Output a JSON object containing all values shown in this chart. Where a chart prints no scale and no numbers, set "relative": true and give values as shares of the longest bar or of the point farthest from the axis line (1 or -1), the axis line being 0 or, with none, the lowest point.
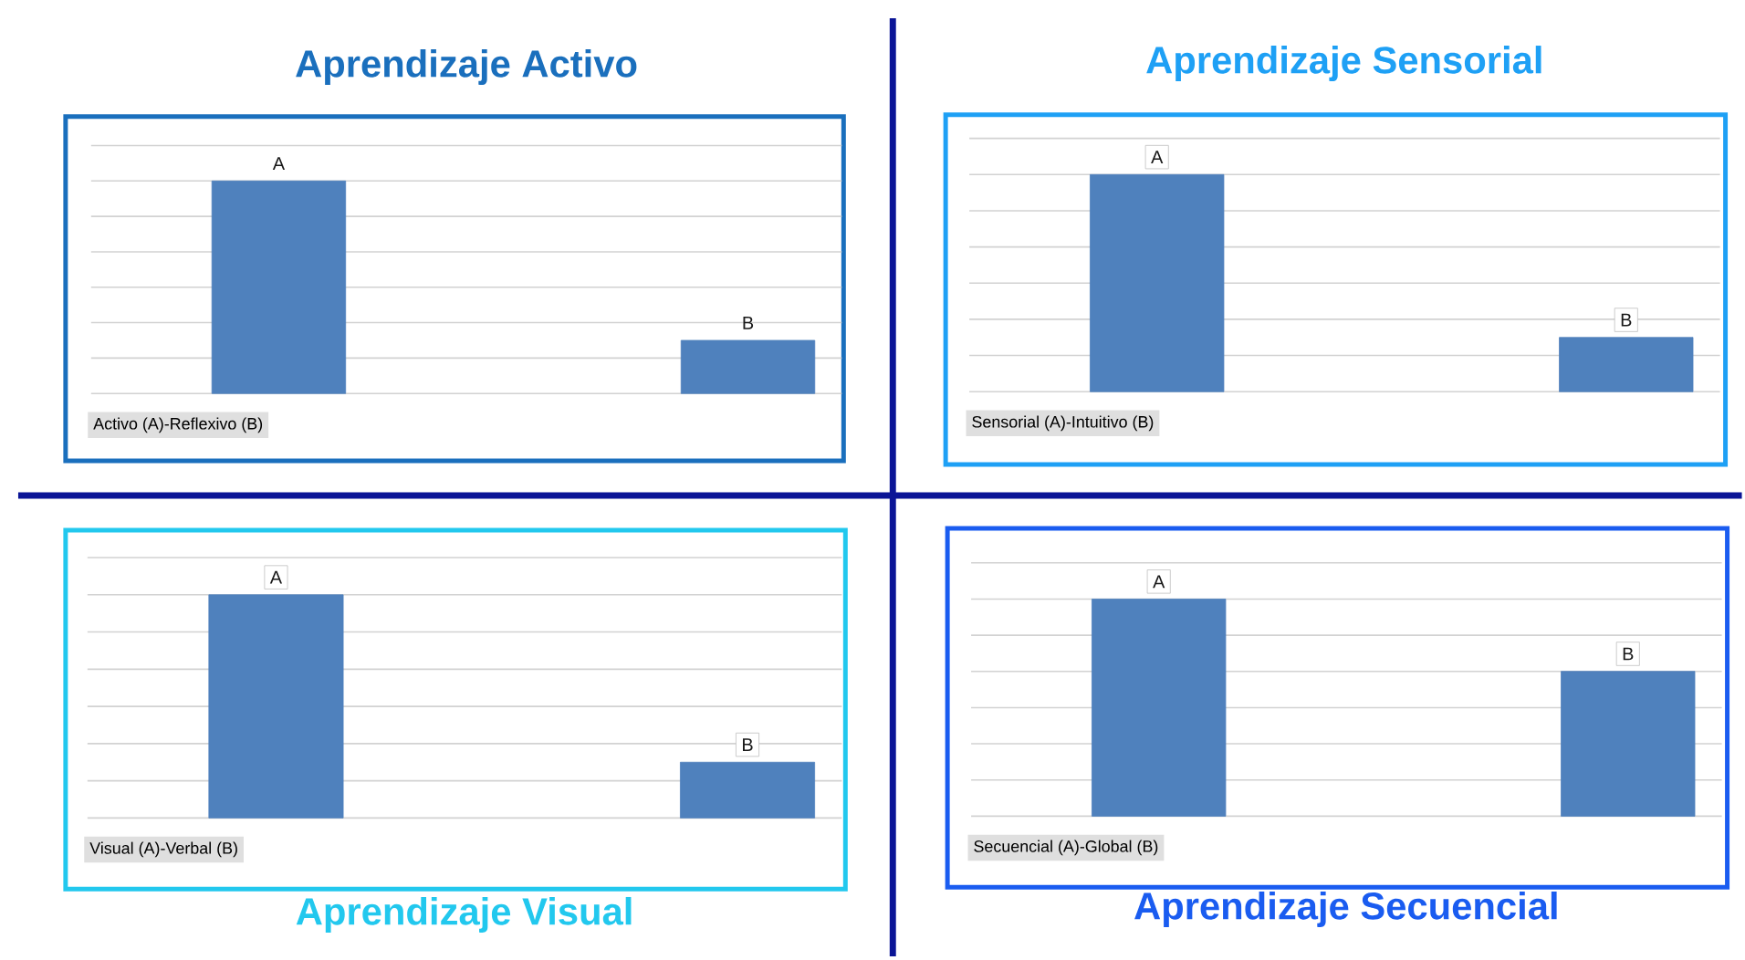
{
  "chart_data": [
    {
      "type": "bar",
      "title": "Aprendizaje Activo",
      "xlabel": "Activo (A)-Reflexivo (B)",
      "categories": [
        "A",
        "B"
      ],
      "values": [
        1,
        0.25
      ],
      "color": "#4f81bd",
      "relative": true,
      "grid": "y"
    },
    {
      "type": "bar",
      "title": "Aprendizaje Sensorial",
      "xlabel": "Sensorial (A)-Intuitivo (B)",
      "categories": [
        "A",
        "B"
      ],
      "values": [
        1,
        0.25
      ],
      "color": "#4f81bd",
      "relative": true,
      "grid": "y"
    },
    {
      "type": "bar",
      "title": "Aprendizaje Visual",
      "xlabel": "Visual (A)-Verbal (B)",
      "categories": [
        "A",
        "B"
      ],
      "values": [
        1,
        0.25
      ],
      "color": "#4f81bd",
      "relative": true,
      "grid": "y"
    },
    {
      "type": "bar",
      "title": "Aprendizaje Secuencial",
      "xlabel": "Secuencial (A)-Global (B)",
      "categories": [
        "A",
        "B"
      ],
      "values": [
        1,
        0.667
      ],
      "color": "#4f81bd",
      "relative": true,
      "grid": "y"
    }
  ]
}
